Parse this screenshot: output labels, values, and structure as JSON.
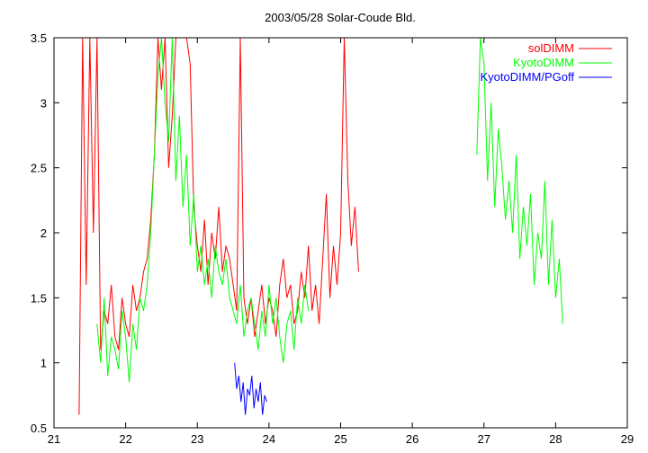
{
  "chart_data": {
    "type": "line",
    "title": "2003/05/28 Solar-Coude Bld.",
    "xlabel": "",
    "ylabel": "",
    "xlim": [
      21,
      29
    ],
    "ylim": [
      0.5,
      3.5
    ],
    "xticks": [
      21,
      22,
      23,
      24,
      25,
      26,
      27,
      28,
      29
    ],
    "yticks": [
      0.5,
      1,
      1.5,
      2,
      2.5,
      3,
      3.5
    ],
    "grid": false,
    "legend_position": "top-right",
    "series": [
      {
        "name": "solDIMM",
        "color": "#ff0000",
        "x": [
          21.35,
          21.4,
          21.45,
          21.5,
          21.55,
          21.6,
          21.65,
          21.7,
          21.75,
          21.8,
          21.85,
          21.9,
          21.95,
          22.0,
          22.05,
          22.1,
          22.15,
          22.2,
          22.25,
          22.3,
          22.35,
          22.4,
          22.45,
          22.5,
          22.55,
          22.6,
          22.65,
          22.7,
          22.75,
          22.8,
          22.85,
          22.9,
          22.95,
          23.0,
          23.05,
          23.1,
          23.15,
          23.2,
          23.25,
          23.3,
          23.35,
          23.4,
          23.45,
          23.5,
          23.55,
          23.6,
          23.65,
          23.7,
          23.75,
          23.8,
          23.85,
          23.9,
          23.95,
          24.0,
          24.05,
          24.1,
          24.15,
          24.2,
          24.25,
          24.3,
          24.35,
          24.4,
          24.45,
          24.5,
          24.55,
          24.6,
          24.65,
          24.7,
          24.75,
          24.8,
          24.85,
          24.9,
          24.95,
          25.0,
          25.05,
          25.1,
          25.15,
          25.2,
          25.25
        ],
        "y": [
          0.6,
          3.5,
          1.6,
          3.5,
          2.0,
          3.5,
          1.1,
          1.4,
          1.3,
          1.6,
          1.2,
          1.1,
          1.5,
          1.3,
          1.2,
          1.6,
          1.4,
          1.5,
          1.7,
          1.8,
          2.1,
          2.6,
          3.5,
          3.1,
          3.5,
          2.5,
          2.9,
          3.5,
          3.5,
          3.5,
          3.5,
          3.3,
          2.2,
          1.9,
          1.7,
          2.1,
          1.6,
          2.0,
          1.8,
          2.2,
          1.7,
          1.9,
          1.8,
          1.6,
          1.4,
          3.5,
          1.5,
          1.3,
          1.5,
          1.2,
          1.4,
          1.6,
          1.3,
          1.5,
          1.4,
          1.2,
          1.6,
          1.8,
          1.5,
          1.6,
          1.3,
          1.4,
          1.7,
          1.5,
          1.9,
          1.4,
          1.6,
          1.3,
          1.8,
          2.3,
          1.5,
          1.9,
          1.6,
          2.0,
          3.5,
          2.4,
          1.9,
          2.2,
          1.7
        ]
      },
      {
        "name": "KyotoDIMM",
        "color": "#00ff00",
        "x": [
          21.6,
          21.65,
          21.7,
          21.75,
          21.8,
          21.85,
          21.9,
          21.95,
          22.0,
          22.05,
          22.1,
          22.15,
          22.2,
          22.25,
          22.3,
          22.35,
          22.4,
          22.45,
          22.5,
          22.55,
          22.6,
          22.65,
          22.7,
          22.75,
          22.8,
          22.85,
          22.9,
          22.95,
          23.0,
          23.05,
          23.1,
          23.15,
          23.2,
          23.25,
          23.3,
          23.35,
          23.4,
          23.45,
          23.5,
          23.55,
          23.6,
          23.65,
          23.7,
          23.75,
          23.8,
          23.85,
          23.9,
          23.95,
          24.0,
          24.05,
          24.1,
          24.15,
          24.2,
          24.25,
          24.3,
          24.35,
          24.4,
          24.45,
          24.5,
          24.55
        ],
        "y": [
          1.3,
          1.0,
          1.5,
          0.9,
          1.2,
          1.1,
          0.95,
          1.4,
          1.2,
          0.85,
          1.3,
          1.1,
          1.5,
          1.4,
          1.6,
          2.0,
          2.6,
          3.2,
          3.5,
          3.0,
          2.7,
          3.5,
          2.4,
          2.9,
          2.2,
          2.6,
          1.9,
          2.3,
          1.7,
          1.9,
          1.6,
          1.8,
          1.5,
          1.9,
          1.7,
          1.6,
          1.8,
          1.5,
          1.4,
          1.3,
          1.6,
          1.2,
          1.4,
          1.5,
          1.3,
          1.1,
          1.4,
          1.2,
          1.6,
          1.3,
          1.5,
          1.2,
          1.0,
          1.3,
          1.4,
          1.1,
          1.5,
          1.3,
          1.6,
          1.4
        ]
      },
      {
        "name": "KyotoDIMM",
        "color": "#00ff00",
        "x": [
          26.9,
          26.95,
          27.0,
          27.05,
          27.1,
          27.15,
          27.2,
          27.25,
          27.3,
          27.35,
          27.4,
          27.45,
          27.5,
          27.55,
          27.6,
          27.65,
          27.7,
          27.75,
          27.8,
          27.85,
          27.9,
          27.95,
          28.0,
          28.05,
          28.1
        ],
        "y": [
          2.6,
          3.5,
          3.3,
          2.4,
          3.0,
          2.2,
          2.8,
          2.5,
          2.1,
          2.4,
          2.0,
          2.6,
          1.8,
          2.2,
          1.9,
          2.3,
          1.6,
          2.0,
          1.8,
          2.4,
          1.6,
          2.1,
          1.5,
          1.8,
          1.3
        ]
      },
      {
        "name": "KyotoDIMM/PGoff",
        "color": "#0000ff",
        "x": [
          23.52,
          23.55,
          23.58,
          23.61,
          23.64,
          23.67,
          23.7,
          23.73,
          23.76,
          23.79,
          23.82,
          23.85,
          23.88,
          23.91,
          23.94,
          23.97
        ],
        "y": [
          1.0,
          0.8,
          0.9,
          0.7,
          0.85,
          0.6,
          0.8,
          0.75,
          0.9,
          0.65,
          0.8,
          0.7,
          0.85,
          0.6,
          0.75,
          0.7
        ]
      }
    ]
  }
}
